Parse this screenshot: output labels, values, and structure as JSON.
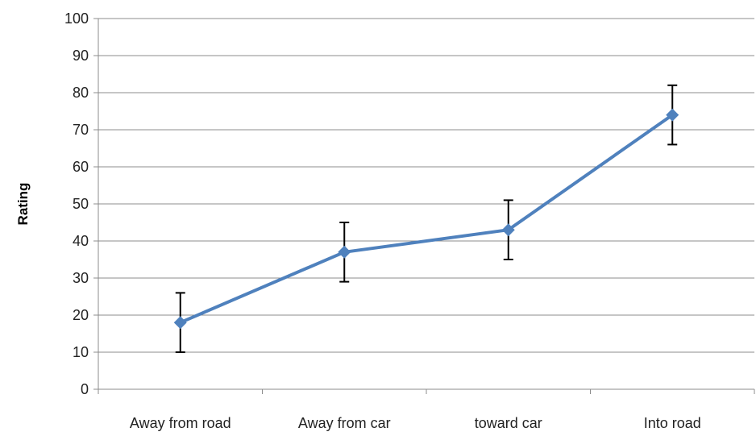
{
  "chart_data": {
    "type": "line",
    "categories": [
      "Away from road",
      "Away from car",
      "toward car",
      "Into road"
    ],
    "series": [
      {
        "values": [
          18,
          37,
          43,
          74
        ],
        "error": [
          8,
          8,
          8,
          8
        ],
        "color": "#4f81bd"
      }
    ],
    "ylabel": "Rating",
    "xlabel": "",
    "ylim": [
      0,
      100
    ],
    "yticks": [
      0,
      10,
      20,
      30,
      40,
      50,
      60,
      70,
      80,
      90,
      100
    ],
    "grid": true,
    "marker": "diamond"
  }
}
